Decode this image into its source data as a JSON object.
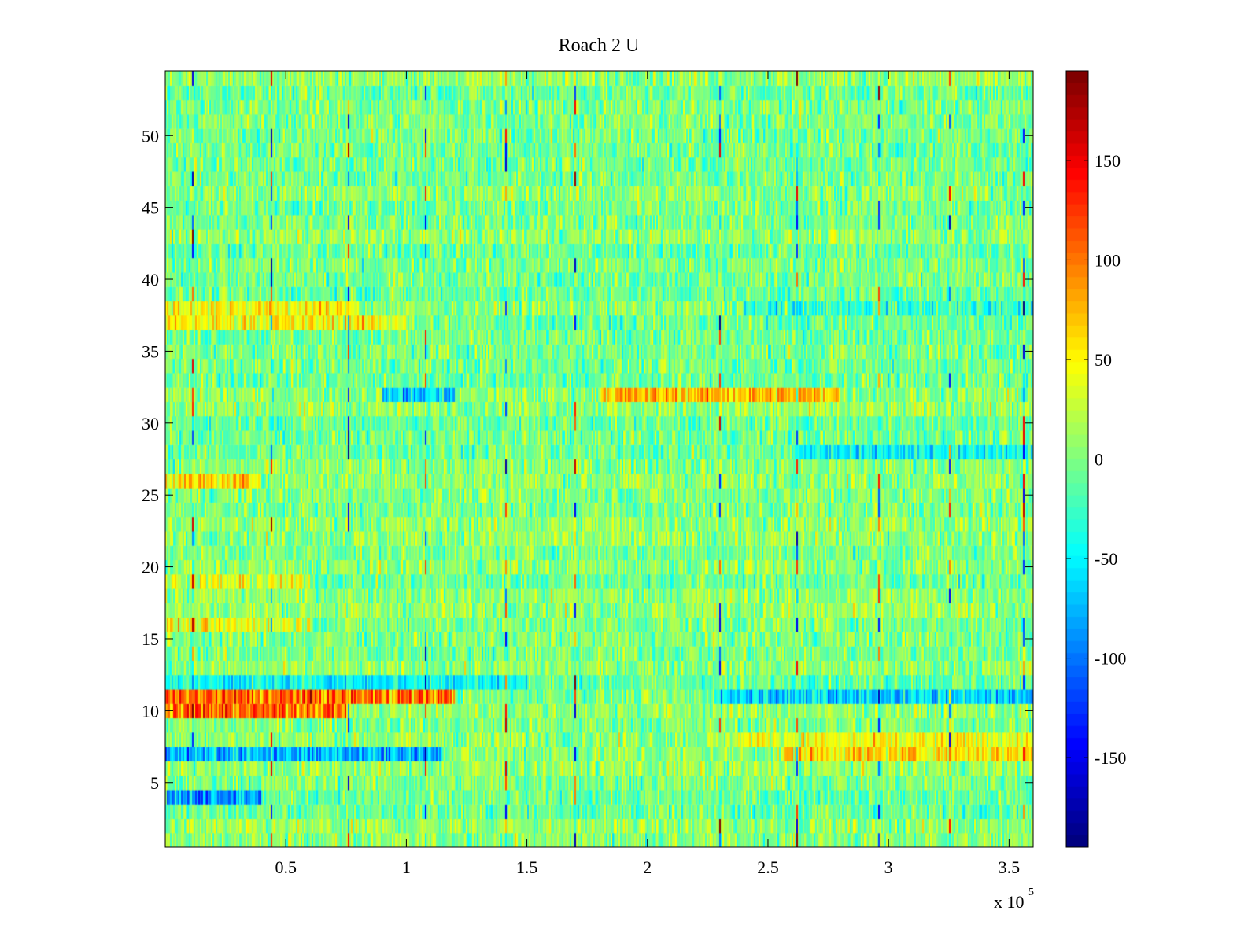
{
  "chart_data": {
    "type": "heatmap",
    "title": "Roach 2 U",
    "xlabel": "",
    "ylabel": "",
    "x_range": [
      0,
      360000
    ],
    "y_range": [
      0.5,
      54.5
    ],
    "x_ticks": [
      50000,
      100000,
      150000,
      200000,
      250000,
      300000,
      350000
    ],
    "x_tick_labels": [
      "0.5",
      "1",
      "1.5",
      "2",
      "2.5",
      "3",
      "3.5"
    ],
    "x_exponent": {
      "base": "x 10",
      "power": "5"
    },
    "y_ticks": [
      5,
      10,
      15,
      20,
      25,
      30,
      35,
      40,
      45,
      50
    ],
    "y_tick_labels": [
      "5",
      "10",
      "15",
      "20",
      "25",
      "30",
      "35",
      "40",
      "45",
      "50"
    ],
    "rows": 54,
    "colormap": "jet",
    "color_range": [
      -195,
      195
    ],
    "colorbar_ticks": [
      150,
      100,
      50,
      0,
      -50,
      -100,
      -150
    ],
    "colorbar_tick_labels": [
      "150",
      "100",
      "50",
      "0",
      "-50",
      "-100",
      "-150"
    ],
    "row_bias": [
      {
        "row": 4,
        "x_start": 0,
        "x_end": 40000,
        "value": -85
      },
      {
        "row": 7,
        "x_start": 0,
        "x_end": 115000,
        "value": -90
      },
      {
        "row": 7,
        "x_start": 255000,
        "x_end": 360000,
        "value": 60
      },
      {
        "row": 8,
        "x_start": 235000,
        "x_end": 360000,
        "value": 35
      },
      {
        "row": 10,
        "x_start": 0,
        "x_end": 75000,
        "value": 110
      },
      {
        "row": 11,
        "x_start": 0,
        "x_end": 120000,
        "value": 115
      },
      {
        "row": 11,
        "x_start": 230000,
        "x_end": 360000,
        "value": -70
      },
      {
        "row": 12,
        "x_start": 0,
        "x_end": 150000,
        "value": -40
      },
      {
        "row": 16,
        "x_start": 0,
        "x_end": 60000,
        "value": 45
      },
      {
        "row": 19,
        "x_start": 0,
        "x_end": 60000,
        "value": 45
      },
      {
        "row": 26,
        "x_start": 0,
        "x_end": 40000,
        "value": 55
      },
      {
        "row": 28,
        "x_start": 260000,
        "x_end": 360000,
        "value": -45
      },
      {
        "row": 32,
        "x_start": 90000,
        "x_end": 120000,
        "value": -85
      },
      {
        "row": 32,
        "x_start": 180000,
        "x_end": 280000,
        "value": 75
      },
      {
        "row": 37,
        "x_start": 0,
        "x_end": 100000,
        "value": 60
      },
      {
        "row": 38,
        "x_start": 0,
        "x_end": 80000,
        "value": 50
      },
      {
        "row": 38,
        "x_start": 240000,
        "x_end": 360000,
        "value": -40
      }
    ],
    "spike_columns_x": [
      11000,
      44000,
      76000,
      108000,
      141000,
      170000,
      230000,
      262000,
      296000,
      325000,
      356000
    ]
  }
}
